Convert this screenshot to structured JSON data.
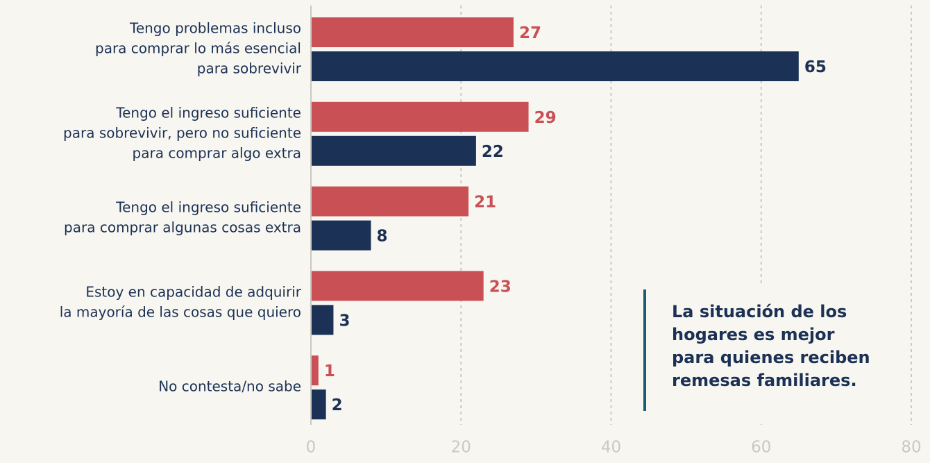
{
  "chart_data": {
    "type": "bar",
    "orientation": "horizontal",
    "categories": [
      [
        "Tengo problemas incluso",
        "para comprar lo más esencial",
        "para sobrevivir"
      ],
      [
        "Tengo el ingreso suficiente",
        "para sobrevivir, pero no suficiente",
        "para comprar algo extra"
      ],
      [
        "Tengo el ingreso suficiente",
        "para comprar algunas cosas extra"
      ],
      [
        "Estoy en capacidad de adquirir",
        "la mayoría de las cosas que quiero"
      ],
      [
        "No contesta/no sabe"
      ]
    ],
    "series": [
      {
        "color": "#c95155",
        "values": [
          27,
          29,
          21,
          23,
          1
        ]
      },
      {
        "color": "#1b3155",
        "values": [
          65,
          22,
          8,
          3,
          2
        ]
      }
    ],
    "xlim": [
      0,
      80
    ],
    "xticks": [
      0,
      20,
      40,
      60,
      80
    ],
    "grid": true,
    "annotation": [
      "La situación de los",
      "hogares es mejor",
      "para quienes reciben",
      "remesas familiares."
    ],
    "annotation_color": "#1a5e73"
  }
}
